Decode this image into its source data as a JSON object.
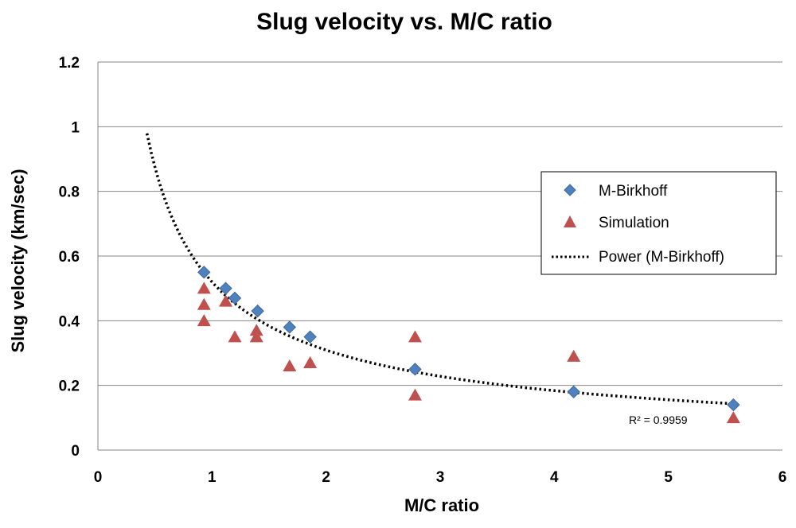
{
  "chart_data": {
    "type": "scatter",
    "title": "Slug velocity vs. M/C ratio",
    "xlabel": "M/C ratio",
    "ylabel": "Slug velocity (km/sec)",
    "xlim": [
      0,
      6
    ],
    "ylim": [
      0,
      1.2
    ],
    "xticks": [
      "0",
      "1",
      "2",
      "3",
      "4",
      "5",
      "6"
    ],
    "yticks": [
      "0",
      "0.2",
      "0.4",
      "0.6",
      "0.8",
      "1",
      "1.2"
    ],
    "grid": "horizontal",
    "legend_position": "right",
    "series": [
      {
        "name": "M-Birkhoff",
        "marker": "diamond",
        "color": "#4F81BD",
        "x": [
          0.93,
          1.12,
          1.2,
          1.4,
          1.68,
          1.86,
          2.78,
          4.17,
          5.57
        ],
        "y": [
          0.55,
          0.5,
          0.47,
          0.43,
          0.38,
          0.35,
          0.25,
          0.18,
          0.14
        ]
      },
      {
        "name": "Simulation",
        "marker": "triangle",
        "color": "#C0504D",
        "x": [
          0.93,
          0.93,
          0.93,
          1.12,
          1.2,
          1.39,
          1.39,
          1.68,
          1.86,
          2.78,
          2.78,
          4.17,
          5.57
        ],
        "y": [
          0.5,
          0.45,
          0.4,
          0.46,
          0.35,
          0.37,
          0.35,
          0.26,
          0.27,
          0.35,
          0.17,
          0.29,
          0.1
        ]
      }
    ],
    "trendline": {
      "name": "Power (M-Birkhoff)",
      "type": "power",
      "coefficient": 0.52,
      "exponent": -0.75,
      "x_range": [
        0.43,
        5.57
      ],
      "color": "#000000",
      "r_squared_label": "R² = 0.9959"
    }
  }
}
